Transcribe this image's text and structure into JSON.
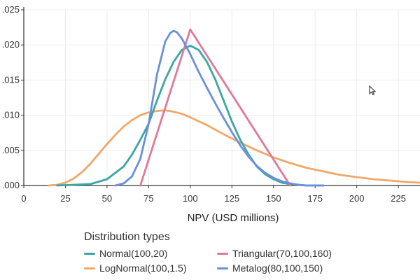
{
  "chart_data": {
    "type": "line",
    "title": "",
    "xlabel": "NPV (USD millions)",
    "ylabel": "",
    "xlim": [
      0,
      238
    ],
    "ylim": [
      0,
      0.025
    ],
    "x_ticks": [
      "0",
      "25",
      "50",
      "75",
      "100",
      "125",
      "150",
      "175",
      "200",
      "225"
    ],
    "y_ticks": [
      ".000",
      ".005",
      ".010",
      ".015",
      ".020",
      ".025"
    ],
    "grid": true,
    "legend": {
      "title": "Distribution types",
      "position": "bottom"
    },
    "series": [
      {
        "name": "Normal(100,20)",
        "color": "#3aa6a6",
        "x": [
          20,
          30,
          40,
          50,
          55,
          60,
          65,
          70,
          75,
          80,
          85,
          90,
          95,
          100,
          105,
          110,
          115,
          120,
          125,
          130,
          135,
          140,
          145,
          150,
          155,
          160,
          165,
          170,
          175,
          180
        ],
        "y": [
          0.0,
          0.0001,
          0.0002,
          0.0009,
          0.0018,
          0.0027,
          0.0044,
          0.0065,
          0.0088,
          0.0121,
          0.0151,
          0.0176,
          0.0193,
          0.0199,
          0.0193,
          0.0176,
          0.0151,
          0.0121,
          0.0091,
          0.0065,
          0.0044,
          0.0027,
          0.0016,
          0.0009,
          0.0004,
          0.0002,
          0.0001,
          0.0,
          0.0,
          0.0
        ]
      },
      {
        "name": "LogNormal(100,1.5)",
        "color": "#f0a868",
        "x": [
          15,
          20,
          25,
          30,
          35,
          40,
          45,
          50,
          55,
          60,
          65,
          70,
          75,
          80,
          85,
          90,
          95,
          100,
          110,
          120,
          130,
          140,
          150,
          160,
          170,
          180,
          190,
          200,
          210,
          220,
          230,
          238
        ],
        "y": [
          0.0,
          0.0001,
          0.0004,
          0.001,
          0.0019,
          0.0031,
          0.0045,
          0.0059,
          0.0072,
          0.0084,
          0.0093,
          0.01,
          0.0104,
          0.0106,
          0.0107,
          0.0105,
          0.0102,
          0.0097,
          0.0086,
          0.0073,
          0.0061,
          0.005,
          0.004,
          0.0032,
          0.0025,
          0.002,
          0.0015,
          0.0012,
          0.0009,
          0.0007,
          0.0005,
          0.0004
        ]
      },
      {
        "name": "Triangular(70,100,160)",
        "color": "#e0789a",
        "x": [
          70,
          100,
          160
        ],
        "y": [
          0.0,
          0.0222,
          0.0
        ]
      },
      {
        "name": "Metalog(80,100,150)",
        "color": "#6a8fdc",
        "x": [
          55,
          60,
          65,
          70,
          75,
          80,
          85,
          88,
          90,
          92,
          95,
          100,
          105,
          110,
          115,
          120,
          125,
          130,
          135,
          140,
          145,
          150,
          155,
          160,
          165,
          170,
          180
        ],
        "y": [
          0.0,
          0.0003,
          0.0013,
          0.0038,
          0.0088,
          0.0158,
          0.0205,
          0.0217,
          0.022,
          0.0218,
          0.0209,
          0.0187,
          0.0162,
          0.0139,
          0.0117,
          0.0096,
          0.0076,
          0.0057,
          0.0041,
          0.0028,
          0.0018,
          0.0011,
          0.0006,
          0.0003,
          0.0001,
          0.0,
          0.0
        ]
      }
    ]
  }
}
